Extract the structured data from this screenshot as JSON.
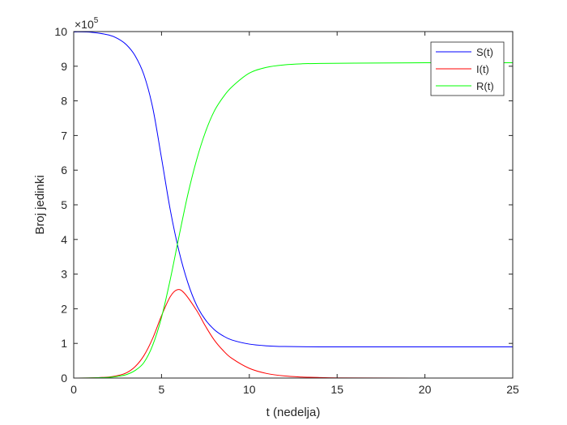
{
  "chart_data": {
    "type": "line",
    "xlabel": "t (nedelja)",
    "ylabel": "Broj jedinki",
    "exponent_label": "×10",
    "exponent_power": "5",
    "xlim": [
      0,
      25
    ],
    "ylim": [
      0,
      10
    ],
    "y_scale_factor": 100000,
    "x_ticks": [
      0,
      5,
      10,
      15,
      20,
      25
    ],
    "y_ticks": [
      0,
      1,
      2,
      3,
      4,
      5,
      6,
      7,
      8,
      9,
      10
    ],
    "grid": false,
    "legend_position": "top-right",
    "series": [
      {
        "name": "S(t)",
        "color": "#0000ff",
        "x": [
          0,
          1,
          2,
          2.5,
          3,
          3.5,
          4,
          4.5,
          5,
          5.5,
          6,
          6.5,
          7,
          7.5,
          8,
          8.5,
          9,
          10,
          11,
          12,
          14,
          16,
          20,
          25
        ],
        "y": [
          9.99,
          9.98,
          9.9,
          9.8,
          9.62,
          9.3,
          8.75,
          7.8,
          6.35,
          4.85,
          3.65,
          2.75,
          2.1,
          1.68,
          1.4,
          1.22,
          1.1,
          0.98,
          0.93,
          0.91,
          0.9,
          0.9,
          0.9,
          0.9
        ]
      },
      {
        "name": "I(t)",
        "color": "#ff0000",
        "x": [
          0,
          1,
          2,
          2.5,
          3,
          3.5,
          4,
          4.5,
          5,
          5.5,
          5.9,
          6.3,
          7,
          7.5,
          8,
          8.5,
          9,
          10,
          11,
          12,
          13,
          14,
          15,
          17,
          20,
          25
        ],
        "y": [
          0.0,
          0.005,
          0.03,
          0.07,
          0.15,
          0.33,
          0.65,
          1.15,
          1.8,
          2.35,
          2.55,
          2.45,
          1.95,
          1.5,
          1.1,
          0.8,
          0.57,
          0.28,
          0.13,
          0.06,
          0.03,
          0.015,
          0.007,
          0.002,
          0.0,
          0.0
        ]
      },
      {
        "name": "R(t)",
        "color": "#00ff00",
        "x": [
          0,
          1,
          2,
          2.5,
          3,
          3.5,
          4,
          4.5,
          5,
          5.5,
          6,
          6.5,
          7,
          7.5,
          8,
          8.5,
          9,
          10,
          11,
          12,
          13,
          14,
          16,
          20,
          25
        ],
        "y": [
          0.0,
          0.005,
          0.02,
          0.05,
          0.1,
          0.22,
          0.45,
          0.95,
          1.75,
          2.85,
          4.1,
          5.3,
          6.3,
          7.1,
          7.7,
          8.1,
          8.4,
          8.8,
          8.97,
          9.04,
          9.07,
          9.08,
          9.09,
          9.1,
          9.1
        ]
      }
    ]
  }
}
